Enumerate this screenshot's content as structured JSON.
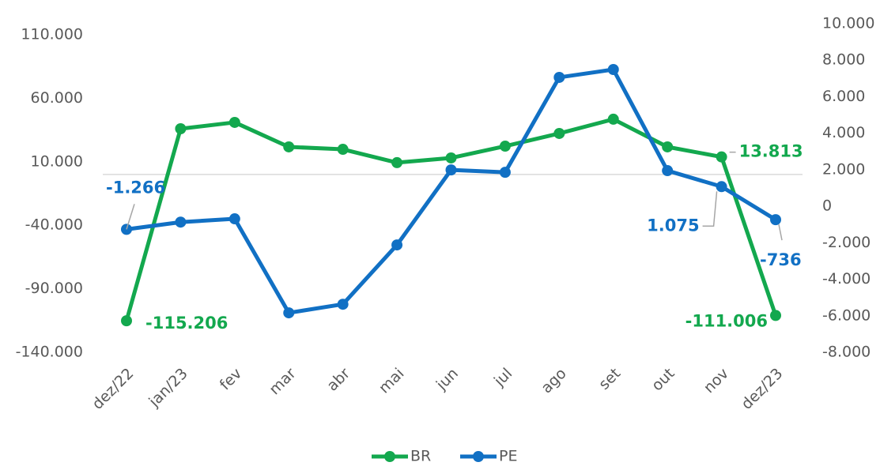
{
  "chart_data": {
    "type": "line",
    "categories": [
      "dez/22",
      "jan/23",
      "fev",
      "mar",
      "abr",
      "mai",
      "jun",
      "jul",
      "ago",
      "set",
      "out",
      "nov",
      "dez/23"
    ],
    "series": [
      {
        "name": "BR",
        "color": "#13a84e",
        "axis": "y",
        "values": [
          -115206,
          36000,
          41000,
          21700,
          19800,
          9300,
          13000,
          22300,
          32300,
          43500,
          21700,
          13813,
          -111006
        ],
        "value_labels": [
          "-115.206",
          null,
          null,
          null,
          null,
          null,
          null,
          null,
          null,
          null,
          null,
          "13.813",
          "-111.006"
        ]
      },
      {
        "name": "PE",
        "color": "#1170c4",
        "axis": "y2",
        "values": [
          -1266,
          -870,
          -690,
          -5840,
          -5370,
          -2120,
          1990,
          1860,
          7060,
          7490,
          1950,
          1075,
          -736
        ],
        "value_labels": [
          "-1.266",
          null,
          null,
          null,
          null,
          null,
          null,
          null,
          null,
          null,
          null,
          "1.075",
          "-736"
        ]
      }
    ],
    "ylim": [
      -140000,
      110000
    ],
    "yticks": [
      {
        "value": -140000,
        "label": "-140.000"
      },
      {
        "value": -90000,
        "label": "-90.000"
      },
      {
        "value": -40000,
        "label": "-40.000"
      },
      {
        "value": 10000,
        "label": "10.000"
      },
      {
        "value": 60000,
        "label": "60.000"
      },
      {
        "value": 110000,
        "label": "110.000"
      }
    ],
    "y2lim": [
      -8000,
      10000
    ],
    "y2ticks": [
      {
        "value": -8000,
        "label": "-8.000"
      },
      {
        "value": -6000,
        "label": "-6.000"
      },
      {
        "value": -4000,
        "label": "-4.000"
      },
      {
        "value": -2000,
        "label": "-2.000"
      },
      0,
      {
        "value": 2000,
        "label": "2.000"
      },
      {
        "value": 4000,
        "label": "4.000"
      },
      {
        "value": 6000,
        "label": "6.000"
      },
      {
        "value": 8000,
        "label": "8.000"
      },
      {
        "value": 10000,
        "label": "10.000"
      }
    ],
    "legend": "bottom"
  }
}
